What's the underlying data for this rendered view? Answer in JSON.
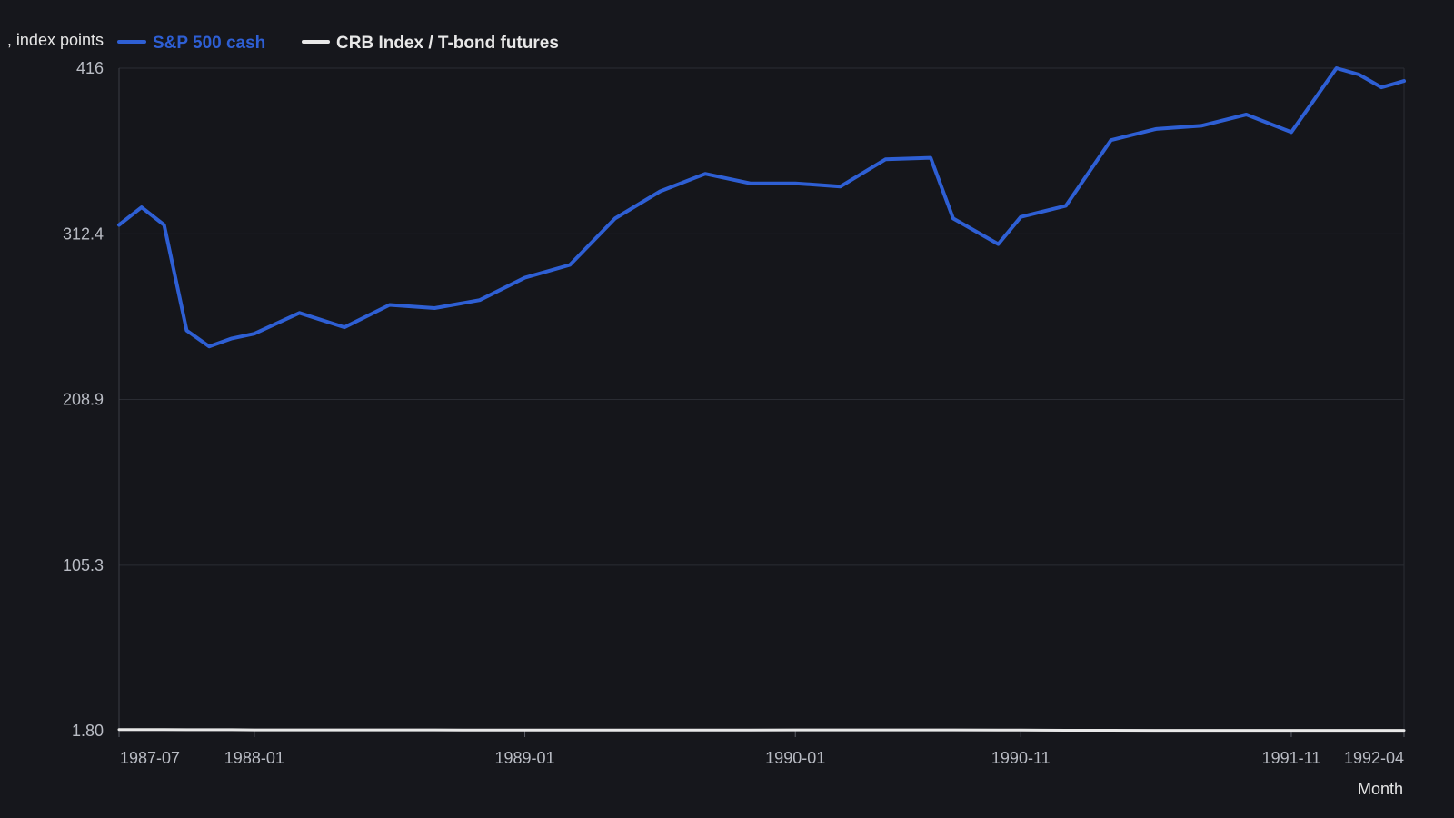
{
  "chart_data": {
    "type": "line",
    "ylabel": "…, index points",
    "ylabel_visible": ", index points",
    "xlabel": "Month",
    "x_tick_labels": [
      "1987-07",
      "1988-01",
      "1989-01",
      "1990-01",
      "1990-11",
      "1991-11",
      "1992-04"
    ],
    "y_ticks": [
      "1.80",
      "105.3",
      "208.9",
      "312.4",
      "416"
    ],
    "ylim": [
      1.8,
      416
    ],
    "grid": true,
    "legend_position": "top-left",
    "x": [
      "1987-07",
      "1987-08",
      "1987-09",
      "1987-10",
      "1987-11",
      "1987-12",
      "1988-01",
      "1988-03",
      "1988-05",
      "1988-07",
      "1988-09",
      "1988-11",
      "1989-01",
      "1989-03",
      "1989-05",
      "1989-07",
      "1989-09",
      "1989-11",
      "1990-01",
      "1990-03",
      "1990-05",
      "1990-07",
      "1990-08",
      "1990-10",
      "1990-11",
      "1991-01",
      "1991-03",
      "1991-05",
      "1991-07",
      "1991-09",
      "1991-11",
      "1992-01",
      "1992-02",
      "1992-03",
      "1992-04"
    ],
    "series": [
      {
        "name": "S&P 500 cash",
        "color": "#2e5fd4",
        "values": [
          318,
          329,
          318,
          252,
          242,
          247,
          250,
          263,
          254,
          268,
          266,
          271,
          285,
          293,
          322,
          339,
          350,
          344,
          344,
          342,
          359,
          360,
          322,
          306,
          323,
          330,
          371,
          378,
          380,
          387,
          376,
          416,
          412,
          404,
          408
        ]
      },
      {
        "name": "CRB Index / T-bond futures",
        "color": "#e8e8e8",
        "values": [
          2.5,
          2.5,
          2.5,
          2.4,
          2.4,
          2.4,
          2.3,
          2.3,
          2.3,
          2.3,
          2.3,
          2.2,
          2.2,
          2.2,
          2.2,
          2.2,
          2.2,
          2.2,
          2.3,
          2.3,
          2.3,
          2.3,
          2.3,
          2.2,
          2.2,
          2.1,
          2.1,
          2.0,
          2.0,
          2.0,
          2.0,
          2.0,
          2.0,
          2.0,
          2.0
        ]
      }
    ]
  }
}
